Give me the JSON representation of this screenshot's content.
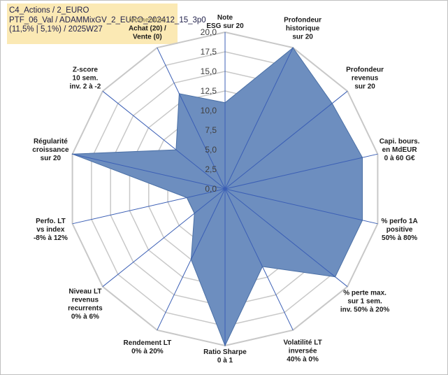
{
  "info_box": {
    "line1": "C4_Actions / 2_EURO",
    "line2": "PTF_06_Val / ADAMMixGV_2_EURO_202412_15_3p0",
    "line3": "(11,5% | 5,1%) / 2025W27"
  },
  "colors": {
    "fill": "#6d8ebf",
    "stroke": "#4a6fa5",
    "grid": "#c8c8c8",
    "axis": "#3b5fb5",
    "momentum": "#a39866"
  },
  "chart_data": {
    "type": "radar",
    "ylim": [
      0,
      20
    ],
    "tick_step": 2.5,
    "tick_labels": [
      "0,0",
      "2,5",
      "5,0",
      "7,5",
      "10,0",
      "12,5",
      "15,0",
      "17,5",
      "20,0"
    ],
    "grid": true,
    "categories": [
      {
        "lines": [
          "Note",
          "ESG sur 20"
        ],
        "value": 11
      },
      {
        "lines": [
          "Profondeur",
          "historique",
          "sur 20"
        ],
        "value": 20
      },
      {
        "lines": [
          "Profondeur",
          "revenus",
          "sur 20"
        ],
        "value": 17.5
      },
      {
        "lines": [
          "Capi. bours.",
          "en MdEUR",
          "0 à 60 G€"
        ],
        "value": 18
      },
      {
        "lines": [
          "% perfo 1A",
          "positive",
          "50% à 80%"
        ],
        "value": 18
      },
      {
        "lines": [
          "% perte max.",
          "sur 1 sem.",
          "inv. 50% à 20%"
        ],
        "value": 18
      },
      {
        "lines": [
          "Volatilité LT",
          "inversée",
          "40% à 0%"
        ],
        "value": 11
      },
      {
        "lines": [
          "Ratio Sharpe",
          "0 à 1"
        ],
        "value": 20
      },
      {
        "lines": [
          "Rendement LT",
          "0% à 20%"
        ],
        "value": 10
      },
      {
        "lines": [
          "Niveau LT",
          "revenus",
          "recurrents",
          "0% à 6%"
        ],
        "value": 5
      },
      {
        "lines": [
          "Perfo. LT",
          "vs index",
          "-8% à 12%"
        ],
        "value": 5
      },
      {
        "lines": [
          "Régularité",
          "croissance",
          "sur 20"
        ],
        "value": 20
      },
      {
        "lines": [
          "Z-score",
          "10 sem.",
          "inv. 2 à -2"
        ],
        "value": 8
      },
      {
        "lines": [
          "Momentum",
          "Achat (20) /",
          "Vente (0)"
        ],
        "value": 13.5
      }
    ]
  }
}
